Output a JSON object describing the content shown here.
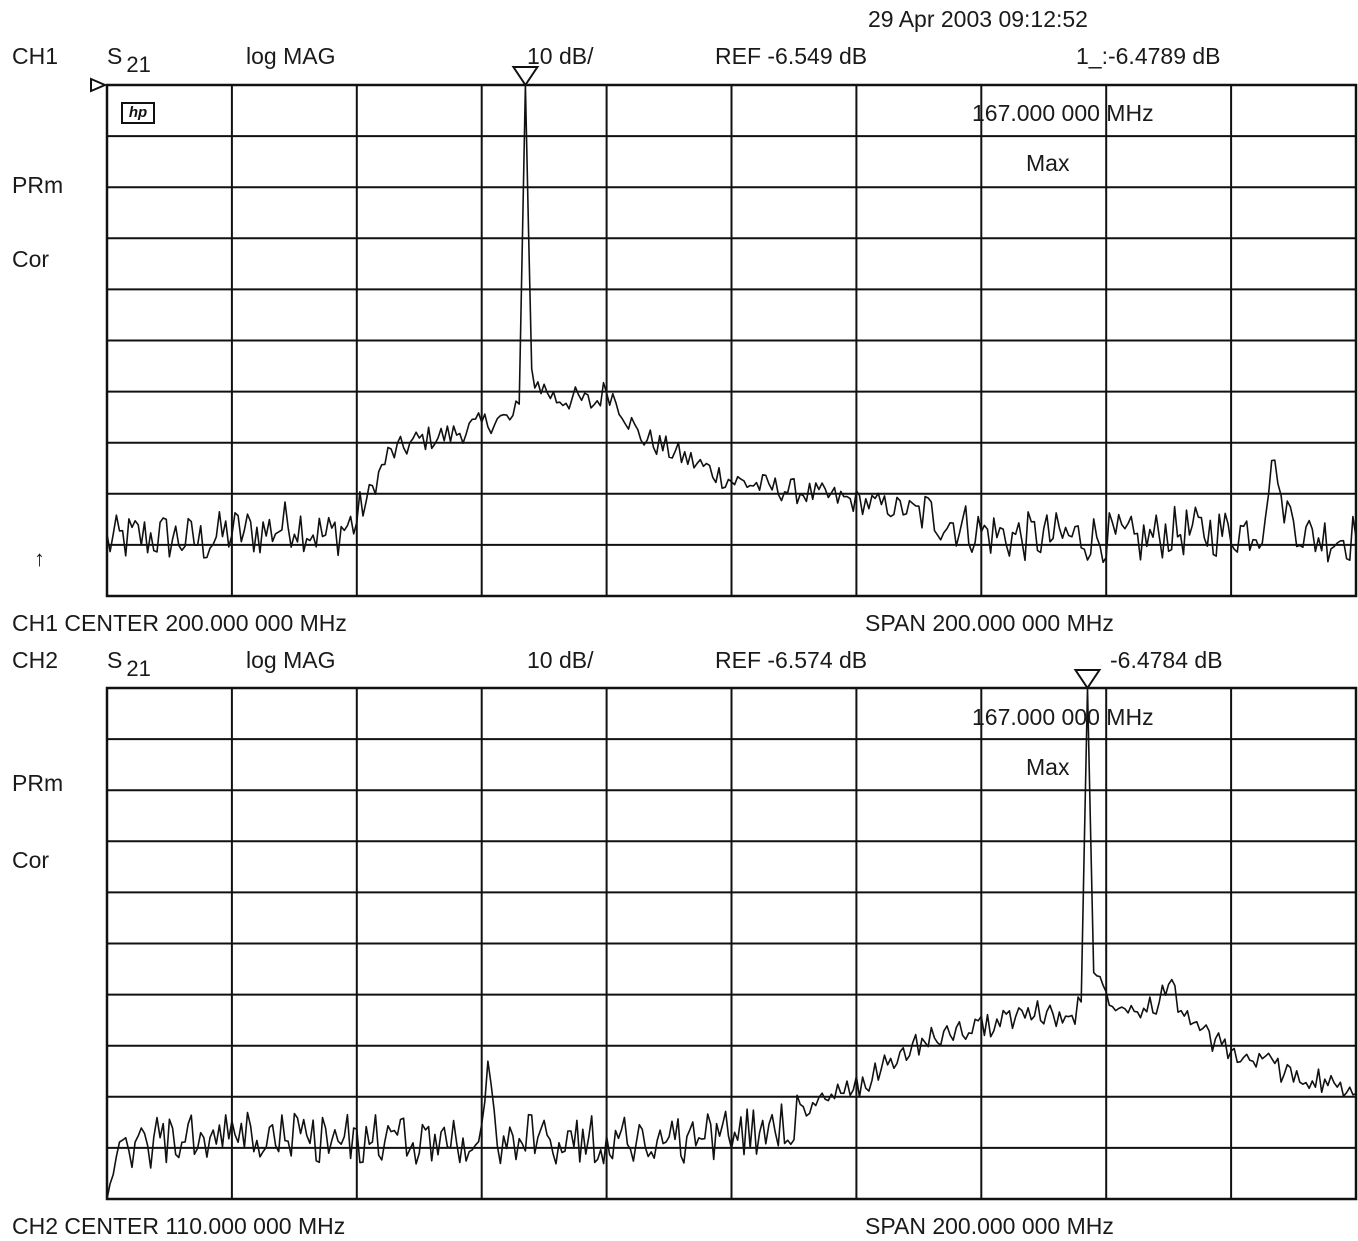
{
  "header": {
    "timestamp": "29 Apr 2003  09:12:52"
  },
  "channels": [
    {
      "id": "CH1",
      "param": "S",
      "param_sub": "21",
      "format": "log MAG",
      "scale": "10 dB/",
      "ref": "REF -6.549 dB",
      "marker_value": "1_:-6.4789 dB",
      "marker_freq": "167.000 000 MHz",
      "marker_mode": "Max",
      "flags": [
        "PRm",
        "Cor"
      ],
      "arrow": "↑",
      "center": "CH1 CENTER  200.000 000 MHz",
      "span": "SPAN  200.000 000 MHz",
      "logo": "hp"
    },
    {
      "id": "CH2",
      "param": "S",
      "param_sub": "21",
      "format": "log MAG",
      "scale": "10 dB/",
      "ref": "REF -6.574 dB",
      "marker_value": "-6.4784 dB",
      "marker_freq": "167.000 000 MHz",
      "marker_mode": "Max",
      "flags": [
        "PRm",
        "Cor"
      ],
      "center": "CH2 CENTER  110.000 000 MHz",
      "span": "SPAN  200.000 000 MHz"
    }
  ],
  "chart_data": [
    {
      "type": "line",
      "title": "",
      "xlabel": "",
      "ylabel": "",
      "xlim_mhz": [
        100,
        300
      ],
      "ylim_db": [
        -106.549,
        -6.549
      ],
      "grid": true,
      "x_divisions": 10,
      "y_divisions": 10,
      "series": [
        {
          "x_mhz": [
            100,
            105,
            110,
            115,
            120,
            125,
            130,
            135,
            140,
            145,
            150,
            155,
            160,
            162,
            163,
            164,
            165,
            166,
            167,
            168,
            169,
            170,
            172,
            175,
            178,
            180,
            182,
            185,
            190,
            195,
            200,
            205,
            210,
            215,
            220,
            225,
            230,
            235,
            240,
            245,
            250,
            255,
            260,
            265,
            270,
            280,
            285,
            287,
            288,
            289,
            292,
            295,
            300
          ],
          "y_db": [
            -96,
            -95,
            -95,
            -96,
            -94,
            -94,
            -92,
            -95,
            -92,
            -79,
            -76,
            -75,
            -73,
            -72,
            -72,
            -72,
            -72,
            -69,
            -6.5,
            -63,
            -65,
            -66,
            -68,
            -68,
            -69,
            -66,
            -69,
            -75,
            -78,
            -81,
            -84,
            -85,
            -86,
            -87,
            -88,
            -89,
            -90,
            -92,
            -94,
            -95,
            -95,
            -95,
            -95,
            -96,
            -94,
            -94,
            -93,
            -78,
            -91,
            -89,
            -95,
            -95,
            -95
          ]
        }
      ]
    },
    {
      "type": "line",
      "title": "",
      "xlabel": "",
      "ylabel": "",
      "xlim_mhz": [
        10,
        210
      ],
      "ylim_db": [
        -106.574,
        -6.574
      ],
      "grid": true,
      "x_divisions": 10,
      "y_divisions": 10,
      "series": [
        {
          "x_mhz": [
            10,
            15,
            20,
            25,
            30,
            35,
            40,
            45,
            50,
            55,
            60,
            65,
            68,
            70,
            71,
            73,
            75,
            80,
            90,
            100,
            110,
            115,
            120,
            125,
            130,
            135,
            140,
            145,
            150,
            155,
            160,
            162,
            163,
            164,
            165,
            166,
            167,
            168,
            169,
            170,
            172,
            175,
            178,
            180,
            182,
            185,
            190,
            195,
            200,
            205,
            210
          ],
          "y_db": [
            -103,
            -96,
            -95,
            -95,
            -94,
            -95,
            -94,
            -95,
            -95,
            -95,
            -95,
            -95,
            -95,
            -95,
            -82,
            -95,
            -95,
            -95,
            -95,
            -95,
            -94,
            -93,
            -91,
            -87,
            -85,
            -80,
            -76,
            -74,
            -73,
            -71,
            -70,
            -71,
            -71,
            -71,
            -70,
            -68,
            -6.5,
            -63,
            -64,
            -66,
            -68,
            -69,
            -68,
            -64,
            -69,
            -74,
            -78,
            -80,
            -82,
            -84,
            -86
          ]
        }
      ]
    }
  ]
}
